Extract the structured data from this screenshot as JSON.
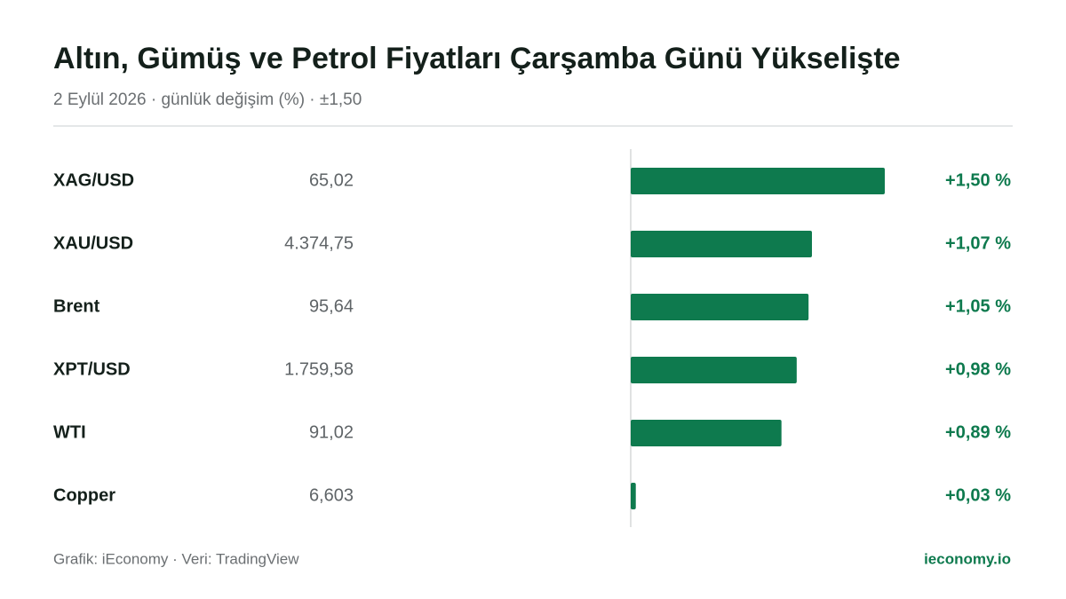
{
  "chart_data": {
    "type": "bar",
    "orientation": "horizontal",
    "title": "Altın, Gümüş ve Petrol Fiyatları Çarşamba Günü Yükselişte",
    "subtitle": "2 Eylül 2026 · günlük değişim (%) · ±1,50",
    "categories": [
      "XAG/USD",
      "XAU/USD",
      "Brent",
      "XPT/USD",
      "WTI",
      "Copper"
    ],
    "prices": [
      "65,02",
      "4.374,75",
      "95,64",
      "1.759,58",
      "91,02",
      "6,603"
    ],
    "values": [
      1.5,
      1.07,
      1.05,
      0.98,
      0.89,
      0.03
    ],
    "value_labels": [
      "+1,50 %",
      "+1,07 %",
      "+1,05 %",
      "+0,98 %",
      "+0,89 %",
      "+0,03 %"
    ],
    "xlim": [
      -1.5,
      1.5
    ],
    "color": "#0e7a4e",
    "source": "Grafik: iEconomy · Veri: TradingView",
    "brand": "ieconomy.io"
  }
}
